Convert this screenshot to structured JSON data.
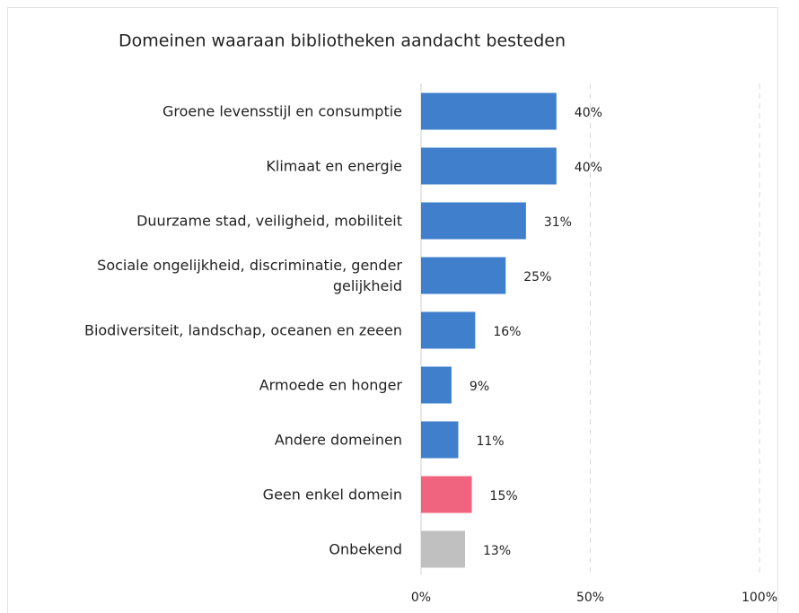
{
  "chart_data": {
    "type": "barh",
    "title": "Domeinen waaraan bibliotheken aandacht besteden",
    "categories": [
      "Groene levensstijl en consumptie",
      "Klimaat en energie",
      "Duurzame stad, veiligheid, mobiliteit",
      "Sociale ongelijkheid, discriminatie, gender gelijkheid",
      "Biodiversiteit, landschap, oceanen en zeeen",
      "Armoede en honger",
      "Andere domeinen",
      "Geen enkel domein",
      "Onbekend"
    ],
    "values": [
      40,
      40,
      31,
      25,
      16,
      9,
      11,
      15,
      13
    ],
    "value_labels": [
      "40%",
      "40%",
      "31%",
      "25%",
      "16%",
      "9%",
      "11%",
      "15%",
      "13%"
    ],
    "colors": [
      "#3f7fcc",
      "#3f7fcc",
      "#3f7fcc",
      "#3f7fcc",
      "#3f7fcc",
      "#3f7fcc",
      "#3f7fcc",
      "#f06480",
      "#c0c0c0"
    ],
    "xlim": [
      0,
      100
    ],
    "xticks": [
      {
        "value": 0,
        "label": "0%"
      },
      {
        "value": 50,
        "label": "50%"
      },
      {
        "value": 100,
        "label": "100%"
      }
    ],
    "grid": true
  }
}
